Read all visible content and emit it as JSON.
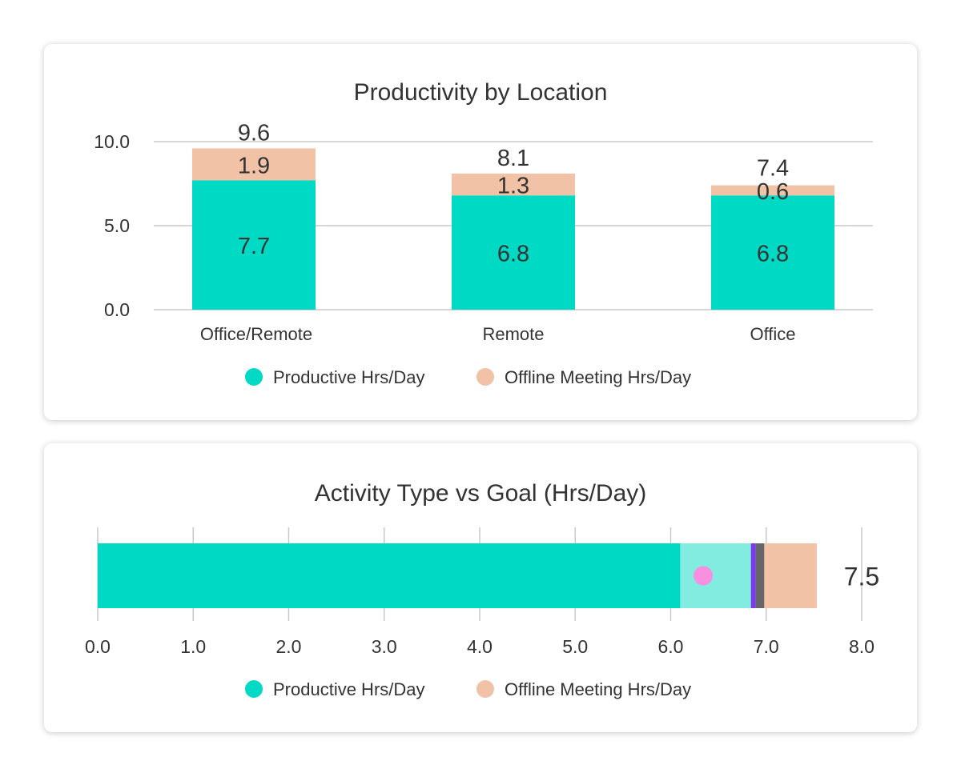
{
  "chart_data": [
    {
      "type": "bar",
      "stacked": true,
      "title": "Productivity by Location",
      "categories": [
        "Office/Remote",
        "Remote",
        "Office"
      ],
      "series": [
        {
          "name": "Productive Hrs/Day",
          "color": "#00d9c3",
          "values": [
            7.7,
            6.8,
            6.8
          ],
          "labels": [
            "7.7",
            "6.8",
            "6.8"
          ]
        },
        {
          "name": "Offline Meeting Hrs/Day",
          "color": "#f1c2a6",
          "values": [
            1.9,
            1.3,
            0.6
          ],
          "labels": [
            "1.9",
            "1.3",
            "0.6"
          ]
        }
      ],
      "totals": [
        "9.6",
        "8.1",
        "7.4"
      ],
      "ylim": [
        0,
        10
      ],
      "yticks": [
        "0.0",
        "5.0",
        "10.0"
      ],
      "grid": true,
      "legend": "bottom"
    },
    {
      "type": "bar",
      "orientation": "horizontal",
      "stacked": true,
      "title": "Activity Type vs Goal (Hrs/Day)",
      "segments": [
        {
          "value": 6.1,
          "color": "#00d9c3"
        },
        {
          "value": 0.74,
          "color": "#82ece1"
        },
        {
          "value": 0.05,
          "color": "#7c3aed"
        },
        {
          "value": 0.09,
          "color": "#666666"
        },
        {
          "value": 0.55,
          "color": "#f1c2a6"
        }
      ],
      "goal_marker": {
        "value": 6.34,
        "color": "#f98fe0"
      },
      "total": "7.5",
      "xlim": [
        0,
        8
      ],
      "xticks": [
        "0.0",
        "1.0",
        "2.0",
        "3.0",
        "4.0",
        "5.0",
        "6.0",
        "7.0",
        "8.0"
      ],
      "grid": true,
      "legend": {
        "position": "bottom",
        "items": [
          {
            "name": "Productive Hrs/Day",
            "color": "#00d9c3"
          },
          {
            "name": "Offline Meeting Hrs/Day",
            "color": "#f1c2a6"
          }
        ]
      }
    }
  ]
}
